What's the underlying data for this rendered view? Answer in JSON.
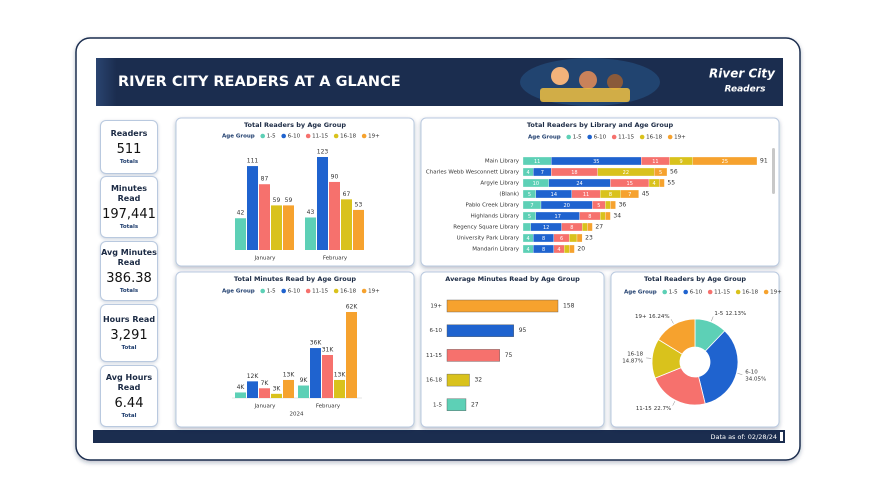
{
  "header": {
    "title": "RIVER CITY READERS AT A GLANCE",
    "logo": [
      "River City",
      "Readers"
    ]
  },
  "kpis": [
    {
      "label": "Readers",
      "value": "511",
      "unit": "Totals"
    },
    {
      "label": "Minutes Read",
      "value": "197,441",
      "unit": "Totals"
    },
    {
      "label": "Avg Minutes Read",
      "value": "386.38",
      "unit": "Totals"
    },
    {
      "label": "Hours Read",
      "value": "3,291",
      "unit": "Total"
    },
    {
      "label": "Avg Hours Read",
      "value": "6.44",
      "unit": "Total"
    }
  ],
  "footer": "Data as of: 02/28/24",
  "chart_data": [
    {
      "type": "bar",
      "title": "Total Readers by Age Group",
      "legend_title": "Age Group",
      "categories": [
        "January",
        "February"
      ],
      "series": [
        {
          "name": "1-5",
          "color": "#5dd0b6",
          "values": [
            42,
            43
          ]
        },
        {
          "name": "6-10",
          "color": "#1f63cf",
          "values": [
            111,
            123
          ]
        },
        {
          "name": "11-15",
          "color": "#f6716d",
          "values": [
            87,
            90
          ]
        },
        {
          "name": "16-18",
          "color": "#d9c21c",
          "values": [
            59,
            67
          ]
        },
        {
          "name": "19+",
          "color": "#f6a22e",
          "values": [
            59,
            53
          ]
        }
      ]
    },
    {
      "type": "stacked_barh",
      "title": "Total Readers by Library and Age Group",
      "legend_title": "Age Group",
      "categories": [
        "Main Library",
        "Charles Webb Wesconnett Library",
        "Argyle Library",
        "(Blank)",
        "Pablo Creek Library",
        "Highlands Library",
        "Regency Square Library",
        "University Park Library",
        "Mandarin Library"
      ],
      "series": [
        {
          "name": "1-5",
          "color": "#5dd0b6",
          "values": [
            11,
            4,
            10,
            5,
            7,
            5,
            3,
            4,
            4
          ]
        },
        {
          "name": "6-10",
          "color": "#1f63cf",
          "values": [
            35,
            7,
            24,
            14,
            20,
            17,
            12,
            8,
            8
          ]
        },
        {
          "name": "11-15",
          "color": "#f6716d",
          "values": [
            11,
            18,
            15,
            11,
            5,
            8,
            8,
            6,
            4
          ]
        },
        {
          "name": "16-18",
          "color": "#d9c21c",
          "values": [
            9,
            22,
            4,
            8,
            2,
            2,
            2,
            3,
            2
          ]
        },
        {
          "name": "19+",
          "color": "#f6a22e",
          "values": [
            25,
            5,
            2,
            7,
            2,
            2,
            2,
            2,
            2
          ]
        }
      ],
      "totals": [
        91,
        56,
        55,
        45,
        36,
        34,
        27,
        23,
        20
      ]
    },
    {
      "type": "bar",
      "title": "Total Minutes Read by Age Group",
      "legend_title": "Age Group",
      "categories": [
        "January",
        "February"
      ],
      "xlabel": "2024",
      "series": [
        {
          "name": "1-5",
          "color": "#5dd0b6",
          "values": [
            4000,
            9000
          ],
          "value_labels": [
            "4K",
            "9K"
          ]
        },
        {
          "name": "6-10",
          "color": "#1f63cf",
          "values": [
            12000,
            36000
          ],
          "value_labels": [
            "12K",
            "36K"
          ]
        },
        {
          "name": "11-15",
          "color": "#f6716d",
          "values": [
            7000,
            31000
          ],
          "value_labels": [
            "7K",
            "31K"
          ]
        },
        {
          "name": "16-18",
          "color": "#d9c21c",
          "values": [
            3000,
            13000
          ],
          "value_labels": [
            "3K",
            "13K"
          ]
        },
        {
          "name": "19+",
          "color": "#f6a22e",
          "values": [
            13000,
            62000
          ],
          "value_labels": [
            "13K",
            "62K"
          ]
        }
      ]
    },
    {
      "type": "barh",
      "title": "Average Minutes Read by Age Group",
      "categories": [
        "19+",
        "6-10",
        "11-15",
        "16-18",
        "1-5"
      ],
      "values": [
        158,
        95,
        75,
        32,
        27
      ],
      "colors": [
        "#f6a22e",
        "#1f63cf",
        "#f6716d",
        "#d9c21c",
        "#5dd0b6"
      ]
    },
    {
      "type": "pie",
      "title": "Total Readers by Age Group",
      "legend_title": "Age Group",
      "categories": [
        "1-5",
        "6-10",
        "11-15",
        "16-18",
        "19+"
      ],
      "values": [
        12.13,
        34.05,
        22.7,
        14.87,
        16.24
      ],
      "value_labels": [
        "12.13%",
        "34.05%",
        "22.7%",
        "14.87%",
        "16.24%"
      ],
      "colors": [
        "#5dd0b6",
        "#1f63cf",
        "#f6716d",
        "#d9c21c",
        "#f6a22e"
      ]
    }
  ]
}
